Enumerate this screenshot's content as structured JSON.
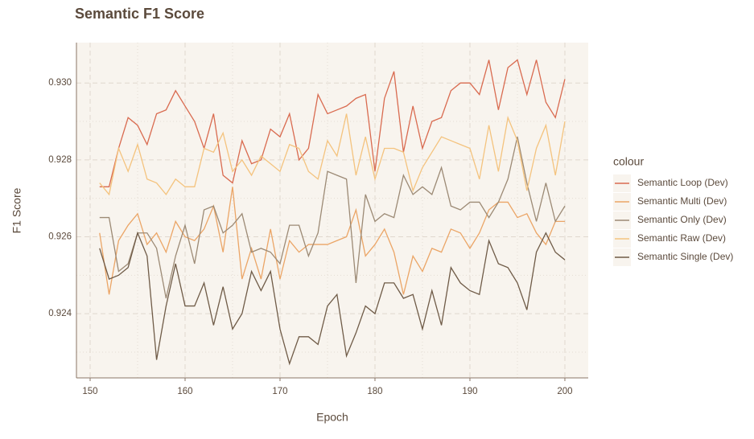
{
  "chart_data": {
    "type": "line",
    "title": "Semantic F1 Score",
    "xlabel": "Epoch",
    "ylabel": "F1 Score",
    "legend_title": "colour",
    "legend_position": "right",
    "grid": true,
    "x": [
      151,
      152,
      153,
      154,
      155,
      156,
      157,
      158,
      159,
      160,
      161,
      162,
      163,
      164,
      165,
      166,
      167,
      168,
      169,
      170,
      171,
      172,
      173,
      174,
      175,
      176,
      177,
      178,
      179,
      180,
      181,
      182,
      183,
      184,
      185,
      186,
      187,
      188,
      189,
      190,
      191,
      192,
      193,
      194,
      195,
      196,
      197,
      198,
      199,
      200
    ],
    "xlim": [
      148.56,
      202.46
    ],
    "xticks": [
      150,
      160,
      170,
      180,
      190,
      200
    ],
    "xminorticks": [
      155,
      165,
      175,
      185,
      195
    ],
    "ylim": [
      0.92233,
      0.93105
    ],
    "yticks": [
      0.924,
      0.926,
      0.928,
      {
        "value": 0.93,
        "label": "0.930"
      }
    ],
    "yminorticks": [
      0.923,
      0.925,
      0.927,
      0.929
    ],
    "series": [
      {
        "name": "Semantic Loop (Dev)",
        "color": "#d96b50",
        "values": [
          0.9273,
          0.9273,
          0.9283,
          0.9291,
          0.9289,
          0.9284,
          0.9292,
          0.9293,
          0.9298,
          0.9294,
          0.929,
          0.9283,
          0.9292,
          0.9276,
          0.9274,
          0.9285,
          0.9279,
          0.928,
          0.9288,
          0.9286,
          0.9292,
          0.928,
          0.9283,
          0.9297,
          0.9292,
          0.9293,
          0.9294,
          0.9296,
          0.9297,
          0.9277,
          0.9296,
          0.9303,
          0.9282,
          0.9294,
          0.9283,
          0.929,
          0.9291,
          0.9298,
          0.93,
          0.93,
          0.9297,
          0.9306,
          0.9293,
          0.9304,
          0.9306,
          0.9297,
          0.9306,
          0.9295,
          0.9291,
          0.9301
        ]
      },
      {
        "name": "Semantic Multi (Dev)",
        "color": "#eba566",
        "values": [
          0.9261,
          0.9245,
          0.9259,
          0.9263,
          0.9266,
          0.9258,
          0.9261,
          0.9256,
          0.9264,
          0.926,
          0.9259,
          0.9262,
          0.9268,
          0.9256,
          0.9273,
          0.9249,
          0.9257,
          0.9249,
          0.9262,
          0.9249,
          0.9259,
          0.9256,
          0.9258,
          0.9258,
          0.9258,
          0.9259,
          0.926,
          0.9267,
          0.9255,
          0.9258,
          0.9262,
          0.9256,
          0.9245,
          0.9255,
          0.9251,
          0.9257,
          0.9256,
          0.9262,
          0.9261,
          0.9257,
          0.9261,
          0.9267,
          0.9269,
          0.9269,
          0.9265,
          0.9266,
          0.9261,
          0.9258,
          0.9264,
          0.9264
        ]
      },
      {
        "name": "Semantic Only (Dev)",
        "color": "#9c8a75",
        "values": [
          0.9265,
          0.9265,
          0.9251,
          0.9253,
          0.9261,
          0.9261,
          0.9257,
          0.9244,
          0.9255,
          0.9263,
          0.9253,
          0.9267,
          0.9268,
          0.9261,
          0.9263,
          0.9266,
          0.9256,
          0.9257,
          0.9256,
          0.9253,
          0.9263,
          0.9263,
          0.9255,
          0.9261,
          0.9277,
          0.9276,
          0.9275,
          0.9248,
          0.9271,
          0.9264,
          0.9266,
          0.9265,
          0.9276,
          0.9271,
          0.9273,
          0.9271,
          0.9278,
          0.9268,
          0.9267,
          0.9269,
          0.9269,
          0.9265,
          0.9269,
          0.9275,
          0.9286,
          0.9274,
          0.9264,
          0.9274,
          0.9264,
          0.9268
        ]
      },
      {
        "name": "Semantic Raw (Dev)",
        "color": "#f4c37e",
        "values": [
          0.9274,
          0.9271,
          0.9283,
          0.9277,
          0.9284,
          0.9275,
          0.9274,
          0.9271,
          0.9275,
          0.9273,
          0.9273,
          0.9283,
          0.9282,
          0.9287,
          0.9277,
          0.928,
          0.9276,
          0.9281,
          0.9279,
          0.9277,
          0.9284,
          0.9283,
          0.9277,
          0.9275,
          0.9285,
          0.9281,
          0.9292,
          0.9276,
          0.9286,
          0.9275,
          0.9283,
          0.9283,
          0.9282,
          0.9272,
          0.9278,
          0.9282,
          0.9286,
          0.9285,
          0.9284,
          0.9283,
          0.9275,
          0.9289,
          0.9277,
          0.9291,
          0.9285,
          0.9272,
          0.9283,
          0.9289,
          0.9276,
          0.929
        ]
      },
      {
        "name": "Semantic Single (Dev)",
        "color": "#6f5b47",
        "values": [
          0.9257,
          0.9249,
          0.925,
          0.9252,
          0.9261,
          0.9255,
          0.9228,
          0.9242,
          0.9253,
          0.9242,
          0.9242,
          0.9248,
          0.9237,
          0.9247,
          0.9236,
          0.924,
          0.9251,
          0.9246,
          0.9251,
          0.9236,
          0.9227,
          0.9234,
          0.9234,
          0.9232,
          0.9242,
          0.9245,
          0.9229,
          0.9235,
          0.9242,
          0.924,
          0.9248,
          0.9248,
          0.9244,
          0.9245,
          0.9236,
          0.9246,
          0.9237,
          0.9252,
          0.9248,
          0.9246,
          0.9245,
          0.9259,
          0.9253,
          0.9252,
          0.9248,
          0.9241,
          0.9256,
          0.9261,
          0.9256,
          0.9254
        ]
      }
    ]
  }
}
